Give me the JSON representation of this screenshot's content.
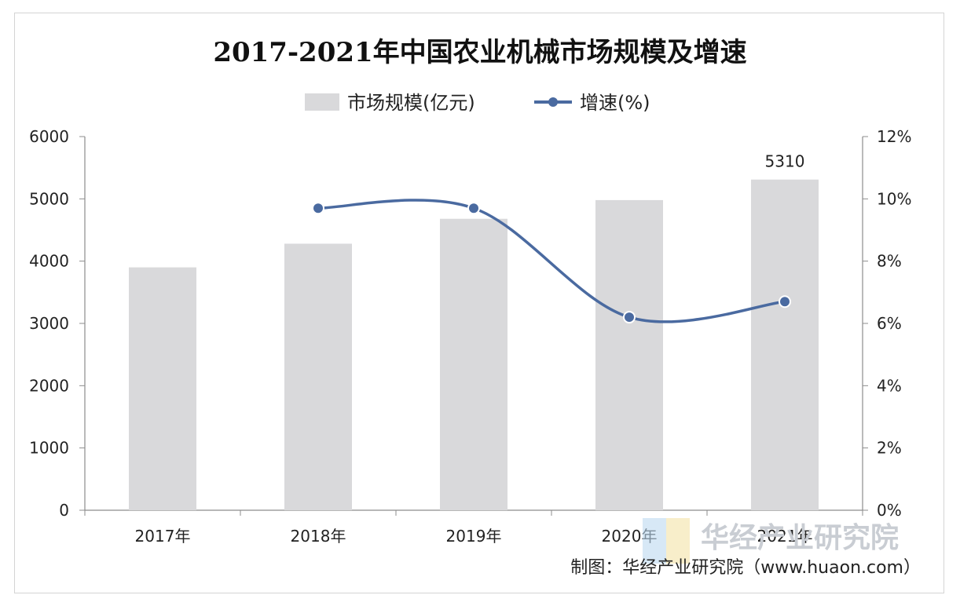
{
  "chart_data": {
    "type": "bar+line",
    "title": "2017-2021年中国农业机械市场规模及增速",
    "categories": [
      "2017年",
      "2018年",
      "2019年",
      "2020年",
      "2021年"
    ],
    "series": [
      {
        "name": "市场规模(亿元)",
        "type": "bar",
        "axis": "left",
        "values": [
          3900,
          4280,
          4680,
          4980,
          5310
        ]
      },
      {
        "name": "增速(%)",
        "type": "line",
        "axis": "right",
        "values": [
          null,
          9.7,
          9.7,
          6.2,
          6.7
        ]
      }
    ],
    "data_labels": [
      {
        "category_index": 4,
        "text": "5310"
      }
    ],
    "left_axis": {
      "min": 0,
      "max": 6000,
      "ticks": [
        "0",
        "1000",
        "2000",
        "3000",
        "4000",
        "5000",
        "6000"
      ]
    },
    "right_axis": {
      "min": 0,
      "max": 12,
      "ticks": [
        "0%",
        "2%",
        "4%",
        "6%",
        "8%",
        "10%",
        "12%"
      ]
    },
    "legend_position": "top-center",
    "grid": false,
    "colors": {
      "bar": "#d9d9db",
      "line": "#4a6aa0"
    }
  },
  "source": "制图：华经产业研究院（www.huaon.com）",
  "watermark": "华经产业研究院"
}
